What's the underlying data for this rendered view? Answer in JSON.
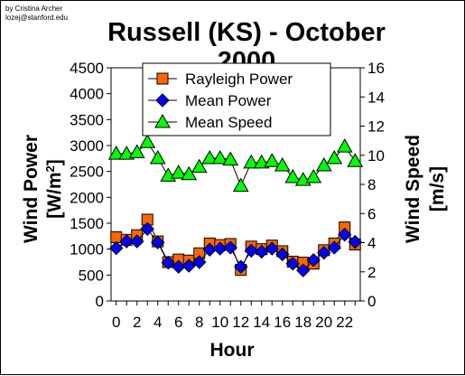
{
  "credit": {
    "line1": "by Cristina Archer",
    "line2": "lozej@stanford.edu"
  },
  "chart_data": {
    "type": "line",
    "title_line1": "Russell (KS) - October",
    "title_line2": "2000",
    "xlabel": "Hour",
    "ylabel_left": "Wind Power [W/m²]",
    "ylabel_right": "Wind Speed [m/s]",
    "x_ticks": [
      "0",
      "2",
      "4",
      "6",
      "8",
      "10",
      "12",
      "14",
      "16",
      "18",
      "20",
      "22"
    ],
    "y_left_ticks": [
      "0",
      "500",
      "1000",
      "1500",
      "2000",
      "2500",
      "3000",
      "3500",
      "4000",
      "4500"
    ],
    "y_right_ticks": [
      "0",
      "2",
      "4",
      "6",
      "8",
      "10",
      "12",
      "14",
      "16"
    ],
    "xlim": [
      -0.5,
      23.5
    ],
    "ylim_left": [
      0,
      4500
    ],
    "ylim_right": [
      0,
      16
    ],
    "grid": false,
    "legend_position": "top-center",
    "x": [
      0,
      1,
      2,
      3,
      4,
      5,
      6,
      7,
      8,
      9,
      10,
      11,
      12,
      13,
      14,
      15,
      16,
      17,
      18,
      19,
      20,
      21,
      22,
      23
    ],
    "series": [
      {
        "name": "Rayleigh Power",
        "axis": "left",
        "marker": "square",
        "color": "#ff6600",
        "values": [
          1230,
          1180,
          1270,
          1570,
          1150,
          750,
          800,
          780,
          920,
          1110,
          1080,
          1100,
          600,
          1050,
          1000,
          1070,
          960,
          760,
          740,
          720,
          980,
          1110,
          1420,
          1090
        ]
      },
      {
        "name": "Mean Power",
        "axis": "left",
        "marker": "diamond",
        "color": "#0000ff",
        "values": [
          1020,
          1150,
          1150,
          1390,
          1130,
          740,
          660,
          680,
          750,
          990,
          1010,
          1030,
          660,
          970,
          950,
          1010,
          900,
          720,
          590,
          790,
          930,
          1030,
          1280,
          1140
        ]
      },
      {
        "name": "Mean Speed",
        "axis": "right",
        "marker": "triangle",
        "color": "#00ff00",
        "values": [
          10.1,
          10.1,
          10.2,
          10.9,
          9.8,
          8.6,
          8.8,
          8.7,
          9.2,
          9.8,
          9.8,
          9.7,
          7.9,
          9.5,
          9.5,
          9.6,
          9.3,
          8.5,
          8.3,
          8.5,
          9.3,
          9.8,
          10.6,
          9.6
        ]
      }
    ]
  }
}
